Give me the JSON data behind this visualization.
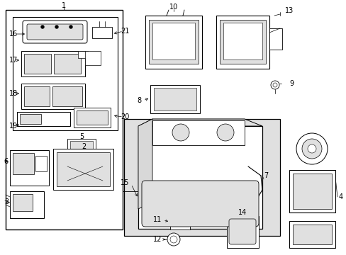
{
  "bg_color": "#ffffff",
  "light_gray": "#e0e0e0",
  "line_color": "#000000",
  "fig_width": 4.89,
  "fig_height": 3.6,
  "dpi": 100
}
